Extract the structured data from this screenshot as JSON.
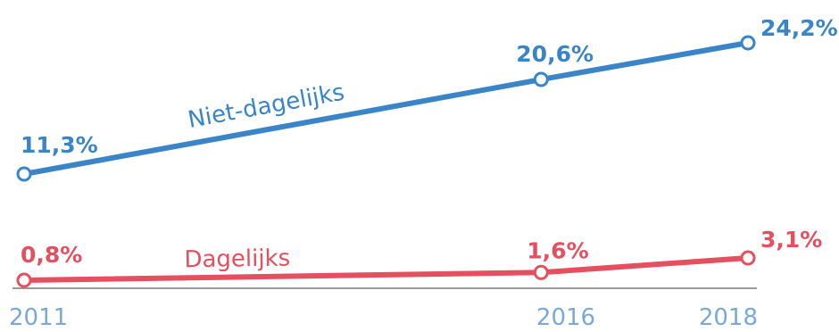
{
  "chart_data": {
    "type": "line",
    "x": [
      2011,
      2016,
      2018
    ],
    "tick_labels": [
      "2011",
      "2016",
      "2018"
    ],
    "series": [
      {
        "name": "Niet-dagelijks",
        "color": "#3a84c8",
        "values": [
          11.3,
          20.6,
          24.2
        ],
        "data_labels": [
          "11,3%",
          "20,6%",
          "24,2%"
        ]
      },
      {
        "name": "Dagelijks",
        "color": "#e4505f",
        "values": [
          0.8,
          1.6,
          3.1
        ],
        "data_labels": [
          "0,8%",
          "1,6%",
          "3,1%"
        ]
      }
    ],
    "axis_color": "#9a9a9a",
    "tick_color": "#7aa9d6",
    "grid": false,
    "legend": "none"
  }
}
